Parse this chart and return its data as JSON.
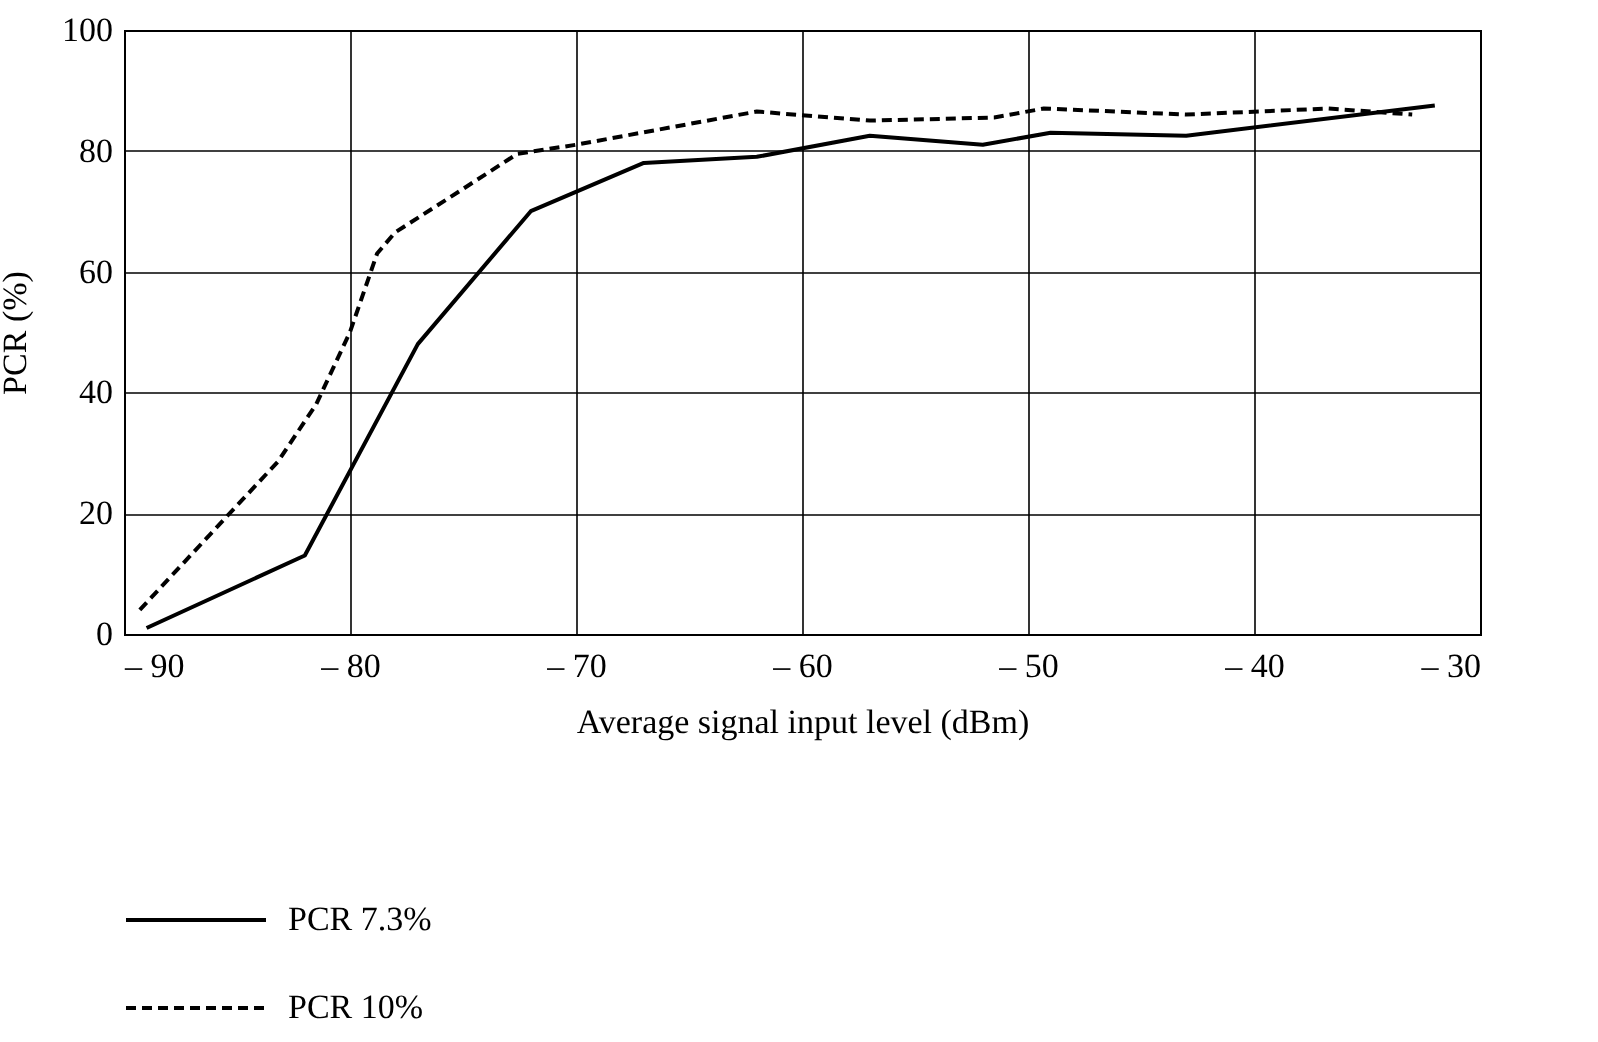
{
  "chart_data": {
    "type": "line",
    "xlabel": "Average signal input level (dBm)",
    "ylabel": "PCR (%)",
    "xlim": [
      -90,
      -30
    ],
    "ylim": [
      0,
      100
    ],
    "xticks": [
      {
        "value": -90,
        "label": "– 90"
      },
      {
        "value": -80,
        "label": "– 80"
      },
      {
        "value": -70,
        "label": "– 70"
      },
      {
        "value": -60,
        "label": "– 60"
      },
      {
        "value": -50,
        "label": "– 50"
      },
      {
        "value": -40,
        "label": "– 40"
      },
      {
        "value": -30,
        "label": "– 30"
      }
    ],
    "yticks": [
      0,
      20,
      40,
      60,
      80,
      100
    ],
    "grid": true,
    "legend": "bottom",
    "marker": "none",
    "series": [
      {
        "name": "PCR 7.3%",
        "color": "#000000",
        "line_style": "solid",
        "x": [
          -89,
          -82,
          -77,
          -72,
          -67,
          -62,
          -57,
          -52,
          -49,
          -43,
          -32
        ],
        "values": [
          1,
          13,
          48,
          70,
          78,
          79,
          82.5,
          81,
          83,
          82.5,
          87.5
        ]
      },
      {
        "name": "PCR 10%",
        "color": "#000000",
        "line_style": "dashed",
        "x": [
          -89.3,
          -83.2,
          -81.5,
          -80,
          -78.8,
          -78,
          -75.7,
          -72.6,
          -70,
          -62,
          -57,
          -51.5,
          -49.3,
          -43,
          -36.7,
          -33
        ],
        "values": [
          4,
          28.5,
          38,
          50,
          63,
          66.5,
          72,
          79.5,
          81,
          86.5,
          85,
          85.5,
          87,
          86,
          87,
          86
        ]
      }
    ]
  }
}
